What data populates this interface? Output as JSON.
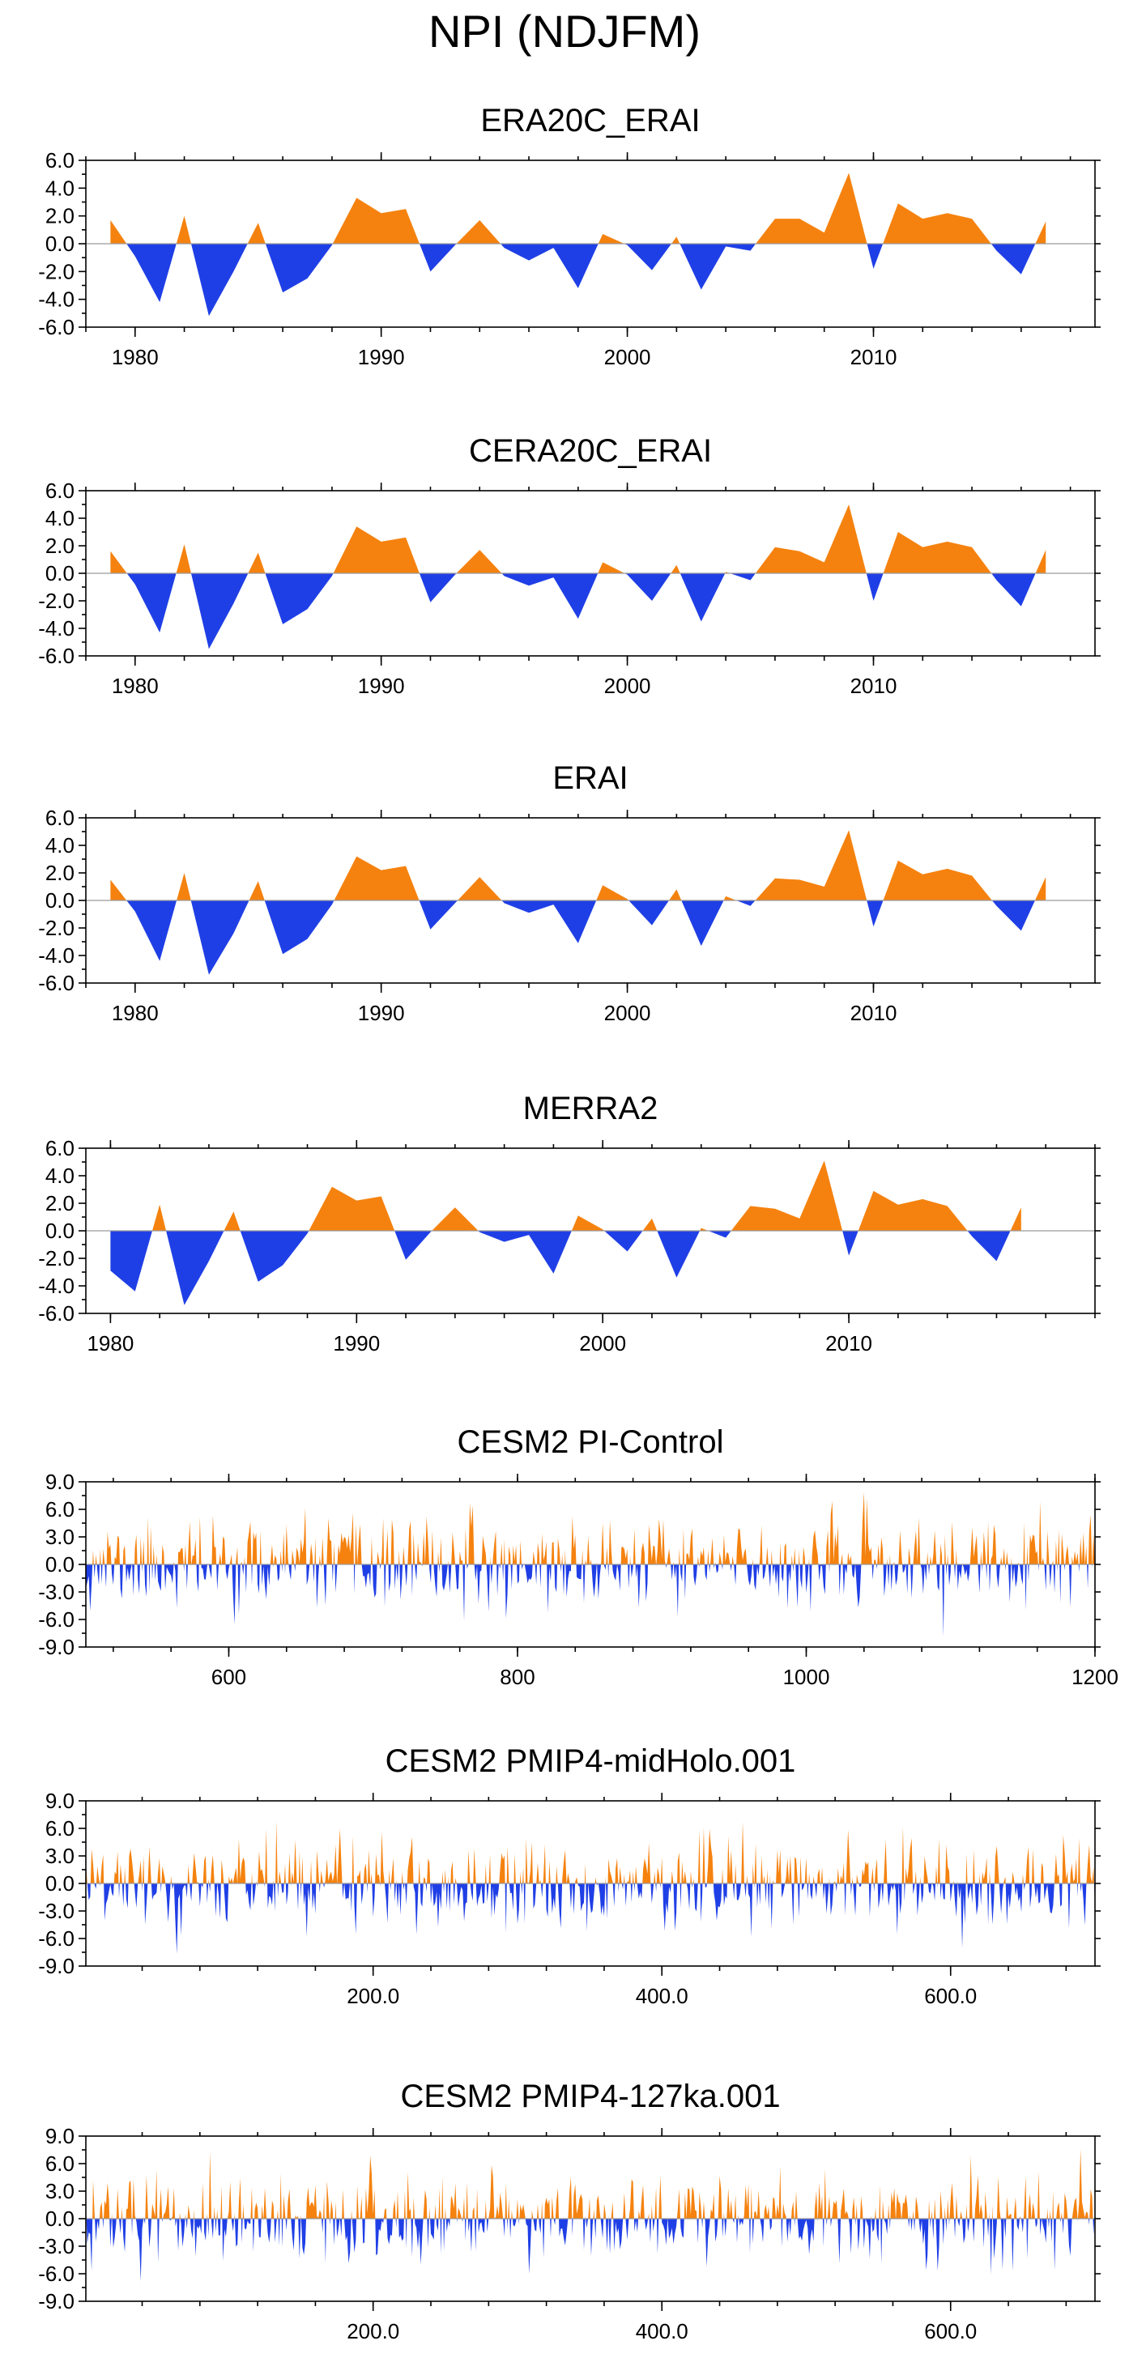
{
  "figure": {
    "title": "NPI (NDJFM)",
    "colors": {
      "positive": "#f5820f",
      "negative": "#1f3fe6"
    }
  },
  "chart_data": [
    {
      "type": "area",
      "title": "ERA20C_ERAI",
      "x": [
        1979,
        1980,
        1981,
        1982,
        1983,
        1984,
        1985,
        1986,
        1987,
        1988,
        1989,
        1990,
        1991,
        1992,
        1993,
        1994,
        1995,
        1996,
        1997,
        1998,
        1999,
        2000,
        2001,
        2002,
        2003,
        2004,
        2005,
        2006,
        2007,
        2008,
        2009,
        2010,
        2011,
        2012,
        2013,
        2014,
        2015,
        2016,
        2017
      ],
      "values": [
        1.7,
        -0.9,
        -4.2,
        2.0,
        -5.2,
        -2.0,
        1.5,
        -3.5,
        -2.5,
        -0.1,
        3.3,
        2.2,
        2.5,
        -2.0,
        -0.1,
        1.7,
        -0.3,
        -1.2,
        -0.3,
        -3.2,
        0.7,
        -0.1,
        -1.9,
        0.5,
        -3.3,
        -0.2,
        -0.5,
        1.8,
        1.8,
        0.8,
        5.1,
        -1.8,
        2.9,
        1.8,
        2.2,
        1.8,
        -0.5,
        -2.2,
        1.6
      ],
      "xlim": [
        1978,
        2019
      ],
      "ylim": [
        -6,
        6
      ],
      "xticks": [
        1980,
        1990,
        2000,
        2010
      ],
      "xtick_labels": [
        "1980",
        "1990",
        "2000",
        "2010"
      ],
      "yticks": [
        6,
        4,
        2,
        0,
        -2,
        -4,
        -6
      ],
      "ytick_labels": [
        "6.0",
        "4.0",
        "2.0",
        "0.0",
        "-2.0",
        "-4.0",
        "-6.0"
      ]
    },
    {
      "type": "area",
      "title": "CERA20C_ERAI",
      "x": [
        1979,
        1980,
        1981,
        1982,
        1983,
        1984,
        1985,
        1986,
        1987,
        1988,
        1989,
        1990,
        1991,
        1992,
        1993,
        1994,
        1995,
        1996,
        1997,
        1998,
        1999,
        2000,
        2001,
        2002,
        2003,
        2004,
        2005,
        2006,
        2007,
        2008,
        2009,
        2010,
        2011,
        2012,
        2013,
        2014,
        2015,
        2016,
        2017
      ],
      "values": [
        1.6,
        -0.8,
        -4.3,
        2.1,
        -5.5,
        -2.2,
        1.5,
        -3.7,
        -2.6,
        -0.2,
        3.4,
        2.3,
        2.6,
        -2.1,
        -0.1,
        1.7,
        -0.2,
        -0.9,
        -0.3,
        -3.3,
        0.8,
        -0.1,
        -2.0,
        0.6,
        -3.5,
        0.1,
        -0.5,
        1.9,
        1.6,
        0.8,
        5.0,
        -2.0,
        3.0,
        1.9,
        2.3,
        1.9,
        -0.5,
        -2.4,
        1.7
      ],
      "xlim": [
        1978,
        2019
      ],
      "ylim": [
        -6,
        6
      ],
      "xticks": [
        1980,
        1990,
        2000,
        2010
      ],
      "xtick_labels": [
        "1980",
        "1990",
        "2000",
        "2010"
      ],
      "yticks": [
        6,
        4,
        2,
        0,
        -2,
        -4,
        -6
      ],
      "ytick_labels": [
        "6.0",
        "4.0",
        "2.0",
        "0.0",
        "-2.0",
        "-4.0",
        "-6.0"
      ]
    },
    {
      "type": "area",
      "title": "ERAI",
      "x": [
        1979,
        1980,
        1981,
        1982,
        1983,
        1984,
        1985,
        1986,
        1987,
        1988,
        1989,
        1990,
        1991,
        1992,
        1993,
        1994,
        1995,
        1996,
        1997,
        1998,
        1999,
        2000,
        2001,
        2002,
        2003,
        2004,
        2005,
        2006,
        2007,
        2008,
        2009,
        2010,
        2011,
        2012,
        2013,
        2014,
        2015,
        2016,
        2017
      ],
      "values": [
        1.5,
        -0.8,
        -4.4,
        2.0,
        -5.4,
        -2.4,
        1.4,
        -3.9,
        -2.8,
        -0.3,
        3.2,
        2.2,
        2.5,
        -2.1,
        -0.2,
        1.7,
        -0.2,
        -0.9,
        -0.3,
        -3.1,
        1.1,
        0.1,
        -1.8,
        0.8,
        -3.3,
        0.3,
        -0.4,
        1.6,
        1.5,
        1.0,
        5.1,
        -1.9,
        2.9,
        1.9,
        2.3,
        1.8,
        -0.4,
        -2.2,
        1.7
      ],
      "xlim": [
        1978,
        2019
      ],
      "ylim": [
        -6,
        6
      ],
      "xticks": [
        1980,
        1990,
        2000,
        2010
      ],
      "xtick_labels": [
        "1980",
        "1990",
        "2000",
        "2010"
      ],
      "yticks": [
        6,
        4,
        2,
        0,
        -2,
        -4,
        -6
      ],
      "ytick_labels": [
        "6.0",
        "4.0",
        "2.0",
        "0.0",
        "-2.0",
        "-4.0",
        "-6.0"
      ]
    },
    {
      "type": "area",
      "title": "MERRA2",
      "x": [
        1980,
        1981,
        1982,
        1983,
        1984,
        1985,
        1986,
        1987,
        1988,
        1989,
        1990,
        1991,
        1992,
        1993,
        1994,
        1995,
        1996,
        1997,
        1998,
        1999,
        2000,
        2001,
        2002,
        2003,
        2004,
        2005,
        2006,
        2007,
        2008,
        2009,
        2010,
        2011,
        2012,
        2013,
        2014,
        2015,
        2016,
        2017
      ],
      "values": [
        -2.9,
        -4.4,
        1.9,
        -5.4,
        -2.2,
        1.4,
        -3.7,
        -2.5,
        -0.2,
        3.2,
        2.2,
        2.5,
        -2.1,
        -0.1,
        1.7,
        -0.1,
        -0.8,
        -0.3,
        -3.1,
        1.1,
        0.1,
        -1.5,
        0.9,
        -3.4,
        0.2,
        -0.5,
        1.8,
        1.6,
        0.9,
        5.1,
        -1.8,
        2.9,
        1.9,
        2.3,
        1.8,
        -0.4,
        -2.2,
        1.7
      ],
      "xlim": [
        1979,
        2020
      ],
      "ylim": [
        -6,
        6
      ],
      "xticks": [
        1980,
        1990,
        2000,
        2010
      ],
      "xtick_labels": [
        "1980",
        "1990",
        "2000",
        "2010"
      ],
      "yticks": [
        6,
        4,
        2,
        0,
        -2,
        -4,
        -6
      ],
      "ytick_labels": [
        "6.0",
        "4.0",
        "2.0",
        "0.0",
        "-2.0",
        "-4.0",
        "-6.0"
      ]
    },
    {
      "type": "area",
      "title": "CESM2 PI-Control",
      "x_start": 501,
      "x_end": 1200,
      "xlim": [
        501,
        1200
      ],
      "ylim": [
        -9,
        9
      ],
      "seed": 11,
      "xticks": [
        600,
        800,
        1000,
        1200
      ],
      "xtick_labels": [
        "600",
        "800",
        "1000",
        "1200"
      ],
      "yticks": [
        9,
        6,
        3,
        0,
        -3,
        -6,
        -9
      ],
      "ytick_labels": [
        "9.0",
        "6.0",
        "3.0",
        "0.0",
        "-3.0",
        "-6.0",
        "-9.0"
      ]
    },
    {
      "type": "area",
      "title": "CESM2 PMIP4-midHolo.001",
      "x_start": 1,
      "x_end": 700,
      "xlim": [
        1,
        700
      ],
      "ylim": [
        -9,
        9
      ],
      "seed": 29,
      "xticks": [
        200,
        400,
        600
      ],
      "xtick_labels": [
        "200.0",
        "400.0",
        "600.0"
      ],
      "yticks": [
        9,
        6,
        3,
        0,
        -3,
        -6,
        -9
      ],
      "ytick_labels": [
        "9.0",
        "6.0",
        "3.0",
        "0.0",
        "-3.0",
        "-6.0",
        "-9.0"
      ]
    },
    {
      "type": "area",
      "title": "CESM2 PMIP4-127ka.001",
      "x_start": 1,
      "x_end": 700,
      "xlim": [
        1,
        700
      ],
      "ylim": [
        -9,
        9
      ],
      "seed": 47,
      "xticks": [
        200,
        400,
        600
      ],
      "xtick_labels": [
        "200.0",
        "400.0",
        "600.0"
      ],
      "yticks": [
        9,
        6,
        3,
        0,
        -3,
        -6,
        -9
      ],
      "ytick_labels": [
        "9.0",
        "6.0",
        "3.0",
        "0.0",
        "-3.0",
        "-6.0",
        "-9.0"
      ]
    }
  ]
}
